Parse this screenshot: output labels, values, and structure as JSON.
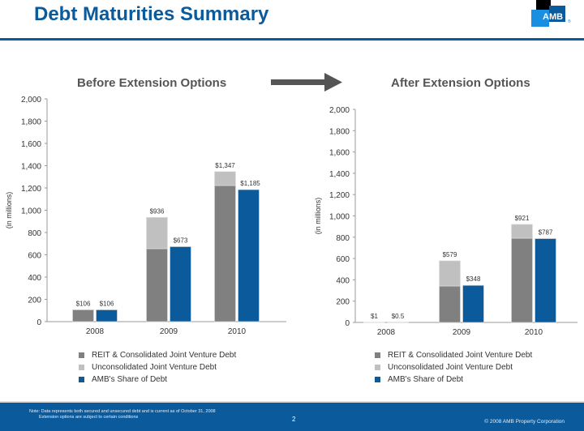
{
  "header": {
    "title": "Debt Maturities Summary",
    "logo_text": "AMB",
    "logo_mark": "®"
  },
  "colors": {
    "brand_blue": "#0a5a9c",
    "reit": "#808080",
    "unconsolidated": "#c0c0c0",
    "amb_share": "#0a5a9c"
  },
  "legend": [
    {
      "label": "REIT & Consolidated Joint Venture Debt",
      "color": "#808080"
    },
    {
      "label": "Unconsolidated Joint Venture Debt",
      "color": "#c0c0c0"
    },
    {
      "label": "AMB's Share of Debt",
      "color": "#0a5a9c"
    }
  ],
  "chart_data": [
    {
      "type": "bar",
      "title": "Before Extension Options",
      "xlabel": "",
      "ylabel": "(in millions)",
      "ylim": [
        0,
        2000
      ],
      "yticks": [
        0,
        200,
        400,
        600,
        800,
        1000,
        1200,
        1400,
        1600,
        1800,
        2000
      ],
      "ytick_labels": [
        "0",
        "200",
        "400",
        "600",
        "800",
        "1,000",
        "1,200",
        "1,400",
        "1,600",
        "1,800",
        "2,000"
      ],
      "categories": [
        "2008",
        "2009",
        "2010"
      ],
      "series": [
        {
          "name": "REIT & Consolidated Joint Venture Debt",
          "stack": "total",
          "values": [
            106,
            655,
            1222
          ]
        },
        {
          "name": "Unconsolidated Joint Venture Debt",
          "stack": "total",
          "values": [
            0,
            281,
            125
          ]
        },
        {
          "name": "AMB's Share of Debt",
          "stack": "share",
          "values": [
            106,
            673,
            1185
          ]
        }
      ],
      "total_labels": [
        "$106",
        "$936",
        "$1,347"
      ],
      "share_labels": [
        "$106",
        "$673",
        "$1,185"
      ]
    },
    {
      "type": "bar",
      "title": "After Extension Options",
      "xlabel": "",
      "ylabel": "(in millions)",
      "ylim": [
        0,
        2000
      ],
      "yticks": [
        0,
        200,
        400,
        600,
        800,
        1000,
        1200,
        1400,
        1600,
        1800,
        2000
      ],
      "ytick_labels": [
        "0",
        "200",
        "400",
        "600",
        "800",
        "1,000",
        "1,200",
        "1,400",
        "1,600",
        "1,800",
        "2,000"
      ],
      "categories": [
        "2008",
        "2009",
        "2010"
      ],
      "series": [
        {
          "name": "REIT & Consolidated Joint Venture Debt",
          "stack": "total",
          "values": [
            1,
            342,
            791
          ]
        },
        {
          "name": "Unconsolidated Joint Venture Debt",
          "stack": "total",
          "values": [
            0,
            237,
            130
          ]
        },
        {
          "name": "AMB's Share of Debt",
          "stack": "share",
          "values": [
            0.5,
            348,
            787
          ]
        }
      ],
      "total_labels": [
        "$1",
        "$579",
        "$921"
      ],
      "share_labels": [
        "$0.5",
        "$348",
        "$787"
      ]
    }
  ],
  "footer": {
    "note_line1": "Note: Data represents both secured and unsecured debt and is current as of October 31, 2008",
    "note_line2": "Extension options are subject to certain conditions",
    "page_number": "2",
    "copyright": "© 2008 AMB Property Corporation"
  }
}
